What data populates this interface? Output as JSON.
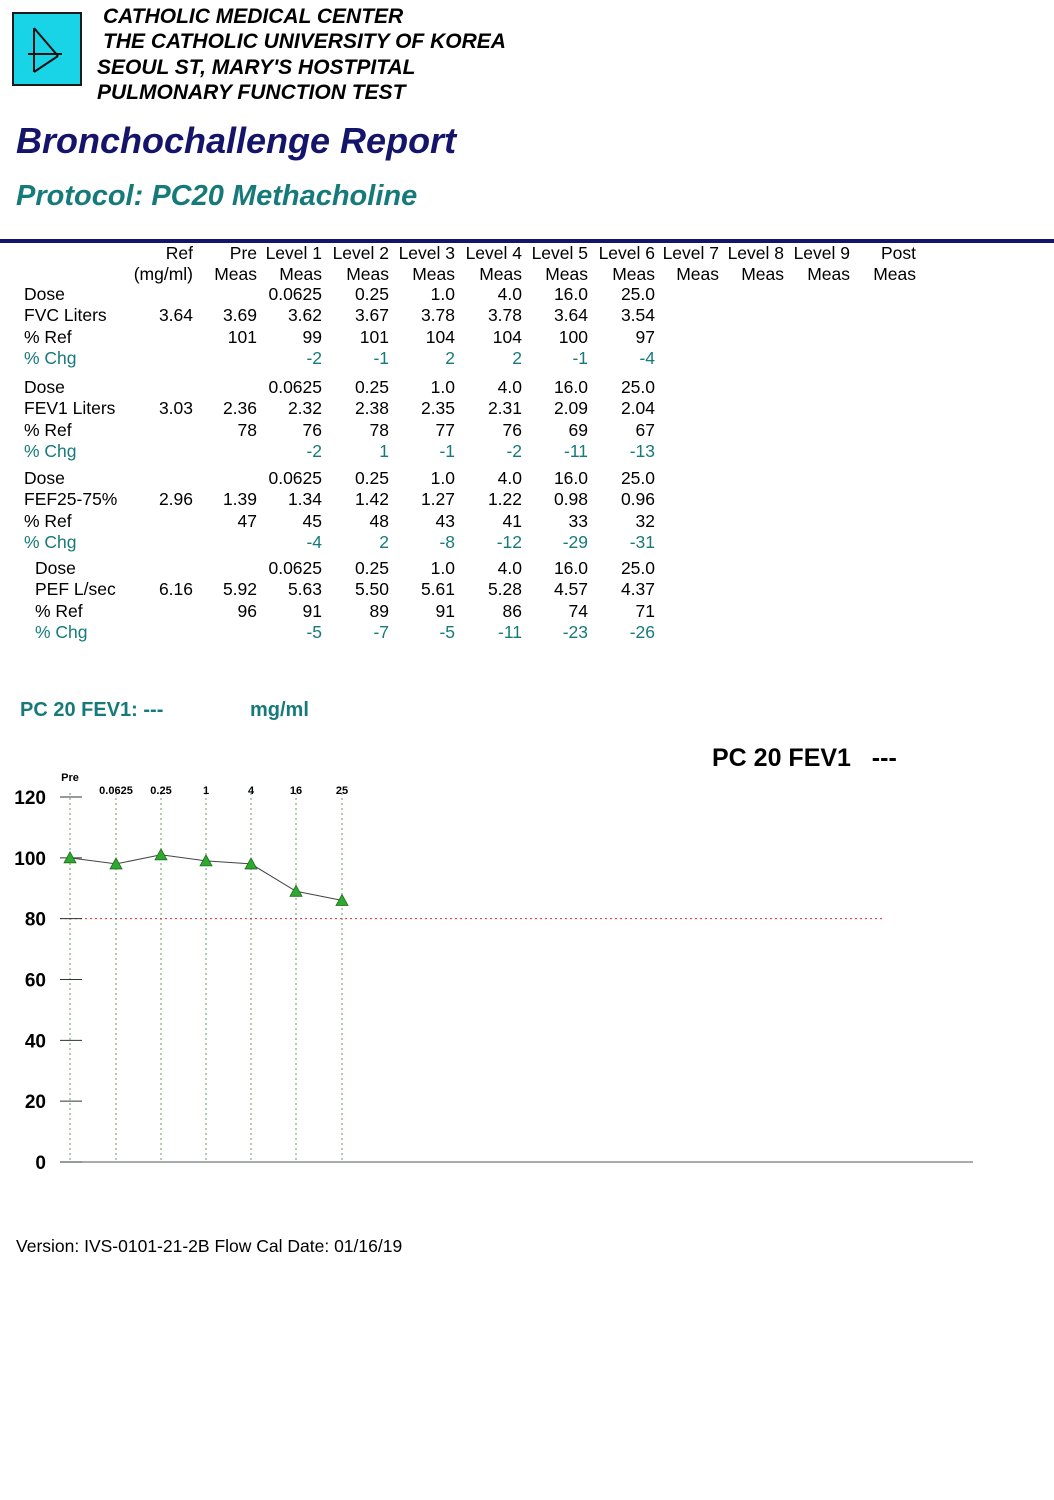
{
  "header": {
    "line1": "CATHOLIC MEDICAL CENTER",
    "line2": "THE CATHOLIC UNIVERSITY OF KOREA",
    "line3": "SEOUL ST, MARY'S HOSTPITAL",
    "line4": "PULMONARY FUNCTION TEST"
  },
  "colors": {
    "title": "#14146b",
    "teal": "#177a7a",
    "logo": "#19d3e6",
    "marker": "#2ea82e",
    "threshold": "#cc3333"
  },
  "title": "Bronchochallenge Report",
  "subtitle": "Protocol: PC20 Methacholine",
  "table": {
    "headers_top": [
      "Ref",
      "Pre",
      "Level 1",
      "Level 2",
      "Level 3",
      "Level 4",
      "Level 5",
      "Level 6",
      "Level 7",
      "Level 8",
      "Level 9",
      "Post"
    ],
    "headers_bottom": [
      "(mg/ml)",
      "Meas",
      "Meas",
      "Meas",
      "Meas",
      "Meas",
      "Meas",
      "Meas",
      "Meas",
      "Meas",
      "Meas",
      "Meas"
    ],
    "groups": [
      {
        "dose_label": "Dose",
        "param_label": "FVC  Liters",
        "pct_ref_label": "% Ref",
        "pct_chg_label": "% Chg",
        "ref": "3.64",
        "dose": [
          "",
          "0.0625",
          "0.25",
          "1.0",
          "4.0",
          "16.0",
          "25.0"
        ],
        "meas": [
          "3.69",
          "3.62",
          "3.67",
          "3.78",
          "3.78",
          "3.64",
          "3.54"
        ],
        "pct_ref": [
          "101",
          "99",
          "101",
          "104",
          "104",
          "100",
          "97"
        ],
        "pct_chg": [
          "",
          "-2",
          "-1",
          "2",
          "2",
          "-1",
          "-4"
        ]
      },
      {
        "dose_label": "Dose",
        "param_label": "FEV1 Liters",
        "pct_ref_label": "% Ref",
        "pct_chg_label": "% Chg",
        "ref": "3.03",
        "dose": [
          "",
          "0.0625",
          "0.25",
          "1.0",
          "4.0",
          "16.0",
          "25.0"
        ],
        "meas": [
          "2.36",
          "2.32",
          "2.38",
          "2.35",
          "2.31",
          "2.09",
          "2.04"
        ],
        "pct_ref": [
          "78",
          "76",
          "78",
          "77",
          "76",
          "69",
          "67"
        ],
        "pct_chg": [
          "",
          "-2",
          "1",
          "-1",
          "-2",
          "-11",
          "-13"
        ]
      },
      {
        "dose_label": "Dose",
        "param_label": "FEF25-75%",
        "pct_ref_label": "% Ref",
        "pct_chg_label": "% Chg",
        "ref": "2.96",
        "dose": [
          "",
          "0.0625",
          "0.25",
          "1.0",
          "4.0",
          "16.0",
          "25.0"
        ],
        "meas": [
          "1.39",
          "1.34",
          "1.42",
          "1.27",
          "1.22",
          "0.98",
          "0.96"
        ],
        "pct_ref": [
          "47",
          "45",
          "48",
          "43",
          "41",
          "33",
          "32"
        ],
        "pct_chg": [
          "",
          "-4",
          "2",
          "-8",
          "-12",
          "-29",
          "-31"
        ]
      },
      {
        "dose_label": "Dose",
        "param_label": "PEF  L/sec",
        "pct_ref_label": "% Ref",
        "pct_chg_label": "% Chg",
        "ref": "6.16",
        "dose": [
          "",
          "0.0625",
          "0.25",
          "1.0",
          "4.0",
          "16.0",
          "25.0"
        ],
        "meas": [
          "5.92",
          "5.63",
          "5.50",
          "5.61",
          "5.28",
          "4.57",
          "4.37"
        ],
        "pct_ref": [
          "96",
          "91",
          "89",
          "91",
          "86",
          "74",
          "71"
        ],
        "pct_chg": [
          "",
          "-5",
          "-7",
          "-5",
          "-11",
          "-23",
          "-26"
        ]
      }
    ]
  },
  "pc20_fev1": {
    "label": "PC 20 FEV1:",
    "value": "---",
    "unit": "mg/ml"
  },
  "pc20_right": {
    "label": "PC 20 FEV1",
    "value": "---"
  },
  "chart_data": {
    "type": "line",
    "title": "",
    "xlabel": "",
    "ylabel": "",
    "categories": [
      "Pre",
      "0.0625",
      "0.25",
      "1",
      "4",
      "16",
      "25"
    ],
    "series": [
      {
        "values": [
          100,
          98,
          101,
          99,
          98,
          89,
          86
        ]
      }
    ],
    "ylim": [
      0,
      120
    ],
    "yticks": [
      0,
      20,
      40,
      60,
      80,
      100,
      120
    ],
    "threshold": 80,
    "grid": "vertical dotted lines at each dose"
  },
  "footer": {
    "version": "Version: IVS-0101-21-2B   Flow Cal Date: 01/16/19"
  }
}
